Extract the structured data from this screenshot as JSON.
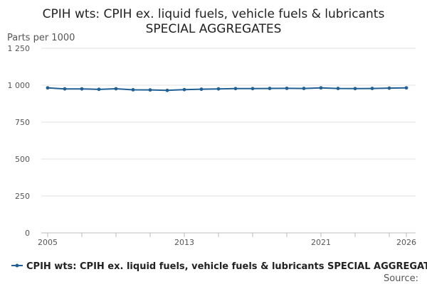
{
  "chart_data": {
    "type": "line",
    "title_lines": [
      "CPIH wts: CPIH ex. liquid fuels, vehicle fuels & lubricants",
      "SPECIAL AGGREGATES"
    ],
    "y_unit": "Parts per 1000",
    "ylim": [
      0,
      1250
    ],
    "y_ticks": [
      0,
      250,
      500,
      750,
      1000,
      1250
    ],
    "y_tick_labels": [
      "0",
      "250",
      "500",
      "750",
      "1 000",
      "1 250"
    ],
    "xlim": [
      2005,
      2026
    ],
    "x_ticks": [
      2005,
      2013,
      2021,
      2026
    ],
    "x_tick_labels": [
      "2005",
      "2013",
      "2021",
      "2026"
    ],
    "x_minor_ticks": [
      2005,
      2007,
      2009,
      2011,
      2013,
      2015,
      2017,
      2019,
      2021,
      2023,
      2025,
      2026
    ],
    "grid": true,
    "series": [
      {
        "name": "CPIH wts: CPIH ex. liquid fuels, vehicle fuels & lubricants SPECIAL AGGREGATES",
        "color": "#206095",
        "x": [
          2005,
          2006,
          2007,
          2008,
          2009,
          2010,
          2011,
          2012,
          2013,
          2014,
          2015,
          2016,
          2017,
          2018,
          2019,
          2020,
          2021,
          2022,
          2023,
          2024,
          2025,
          2026
        ],
        "values": [
          982,
          975,
          975,
          972,
          976,
          969,
          968,
          965,
          970,
          973,
          975,
          977,
          977,
          978,
          979,
          978,
          982,
          978,
          977,
          978,
          980,
          982
        ]
      }
    ],
    "legend_position": "bottom",
    "source_label": "Source:"
  }
}
